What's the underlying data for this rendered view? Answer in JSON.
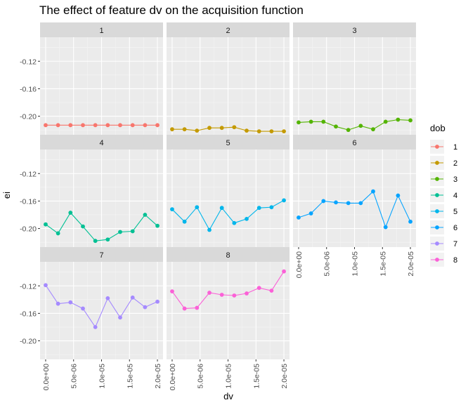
{
  "chart_data": {
    "type": "line",
    "title": "The effect of feature dv on the acquisition function",
    "xlabel": "dv",
    "ylabel": "ei",
    "x_ticks": [
      0,
      5e-06,
      1e-05,
      1.5e-05,
      2e-05
    ],
    "x_tick_labels": [
      "0.0e+00",
      "5.0e-06",
      "1.0e-05",
      "1.5e-05",
      "2.0e-05"
    ],
    "xlim": [
      -1e-06,
      2.1e-05
    ],
    "y_ticks": [
      -0.12,
      -0.16,
      -0.2
    ],
    "y_tick_labels": [
      "-0.12",
      "-0.16",
      "-0.20"
    ],
    "ylim": [
      -0.227,
      -0.085
    ],
    "x": [
      0,
      2.22e-06,
      4.44e-06,
      6.67e-06,
      8.89e-06,
      1.111e-05,
      1.333e-05,
      1.556e-05,
      1.778e-05,
      2e-05
    ],
    "facet_label": "dob",
    "grid": true,
    "legend_position": "right",
    "series": [
      {
        "name": "1",
        "color": "#F8766D",
        "values": [
          -0.213,
          -0.213,
          -0.213,
          -0.213,
          -0.213,
          -0.213,
          -0.213,
          -0.213,
          -0.213,
          -0.213
        ]
      },
      {
        "name": "2",
        "color": "#C49A00",
        "values": [
          -0.219,
          -0.219,
          -0.221,
          -0.217,
          -0.217,
          -0.216,
          -0.221,
          -0.222,
          -0.222,
          -0.222
        ]
      },
      {
        "name": "3",
        "color": "#53B400",
        "values": [
          -0.209,
          -0.208,
          -0.208,
          -0.215,
          -0.22,
          -0.214,
          -0.219,
          -0.208,
          -0.205,
          -0.206
        ]
      },
      {
        "name": "4",
        "color": "#00C094",
        "values": [
          -0.194,
          -0.207,
          -0.177,
          -0.197,
          -0.218,
          -0.216,
          -0.205,
          -0.204,
          -0.18,
          -0.196
        ]
      },
      {
        "name": "5",
        "color": "#00B6EB",
        "values": [
          -0.172,
          -0.19,
          -0.169,
          -0.202,
          -0.17,
          -0.192,
          -0.186,
          -0.17,
          -0.169,
          -0.159
        ]
      },
      {
        "name": "6",
        "color": "#06A4FF",
        "values": [
          -0.184,
          -0.178,
          -0.16,
          -0.162,
          -0.163,
          -0.163,
          -0.146,
          -0.198,
          -0.152,
          -0.19
        ]
      },
      {
        "name": "7",
        "color": "#A58AFF",
        "values": [
          -0.119,
          -0.146,
          -0.144,
          -0.153,
          -0.18,
          -0.138,
          -0.166,
          -0.137,
          -0.151,
          -0.143
        ]
      },
      {
        "name": "8",
        "color": "#FB61D7",
        "values": [
          -0.128,
          -0.153,
          -0.152,
          -0.13,
          -0.133,
          -0.134,
          -0.131,
          -0.123,
          -0.127,
          -0.099
        ]
      }
    ]
  }
}
